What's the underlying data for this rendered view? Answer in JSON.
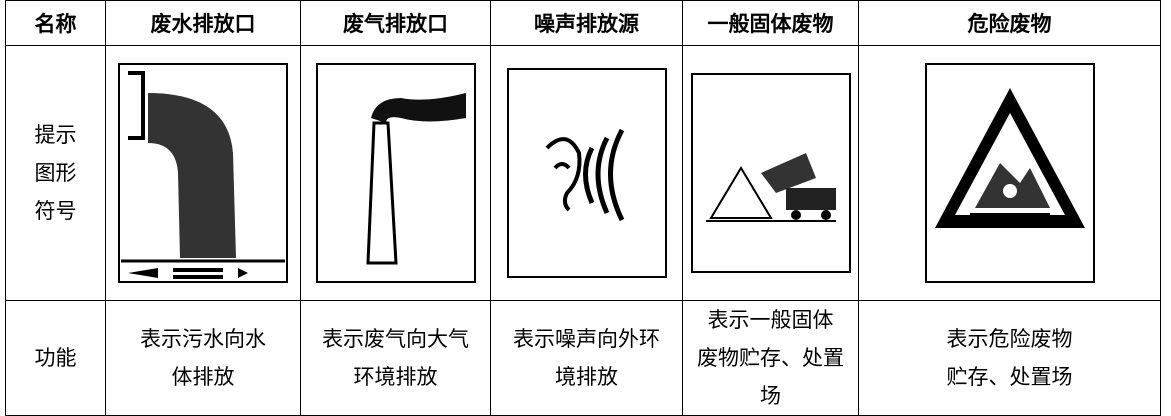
{
  "table": {
    "header": [
      "名称",
      "废水排放口",
      "废气排放口",
      "噪声排放源",
      "一般固体废物",
      "危险废物"
    ],
    "symbol_row_label": [
      "提示",
      "图形",
      "符号"
    ],
    "function_row_label": "功能",
    "functions": [
      [
        "表示污水向水",
        "体排放"
      ],
      [
        "表示废气向大气",
        "环境排放"
      ],
      [
        "表示噪声向外环",
        "境排放"
      ],
      [
        "表示一般固体",
        "废物贮存、处置",
        "场"
      ],
      [
        "表示危险废物",
        "贮存、处置场"
      ]
    ]
  }
}
